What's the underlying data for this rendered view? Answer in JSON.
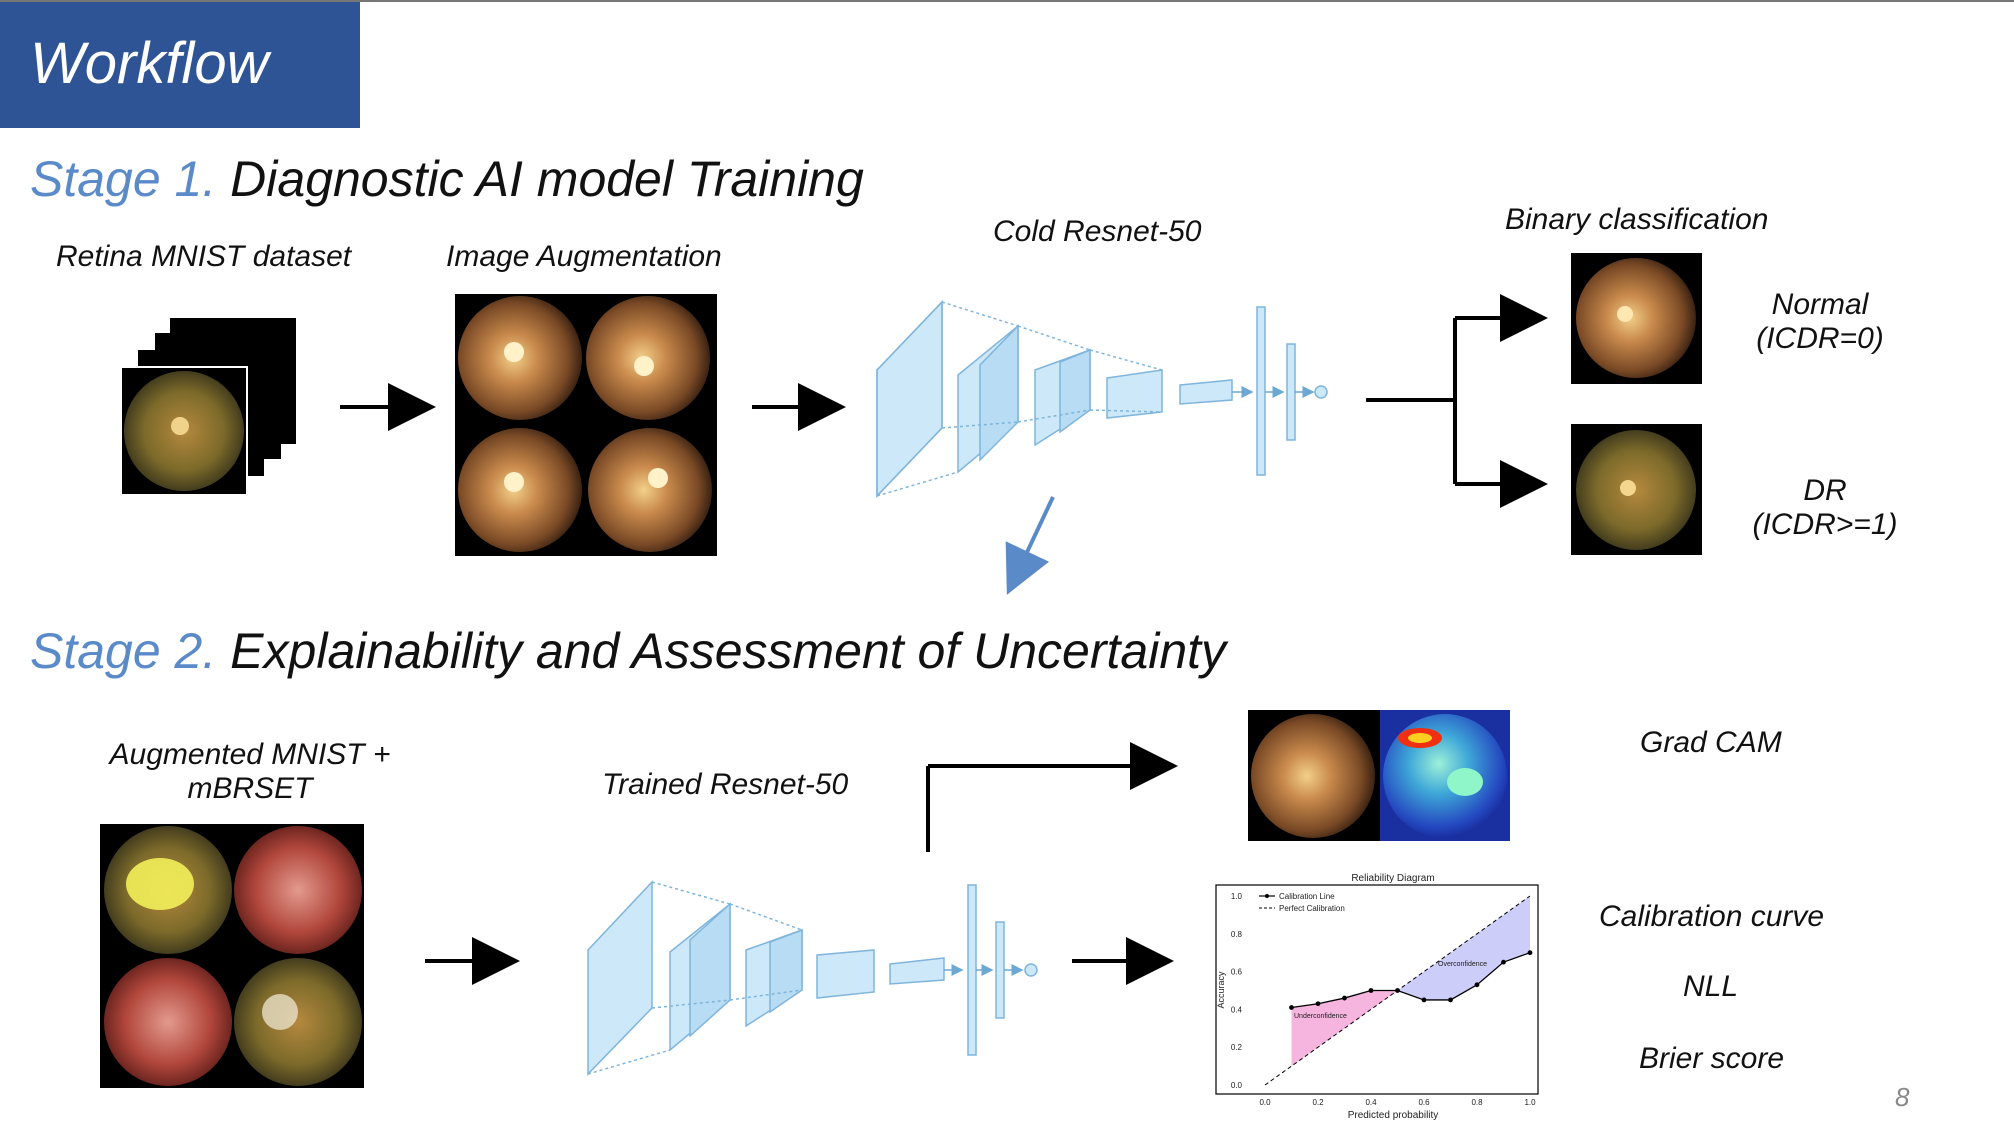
{
  "header": {
    "title": "Workflow"
  },
  "stage1": {
    "prefix": "Stage 1.",
    "title": "Diagnostic AI model Training",
    "dataset_label": "Retina MNIST dataset",
    "augmentation_label": "Image Augmentation",
    "model_label": "Cold Resnet-50",
    "classification_label": "Binary classification",
    "normal_label_line1": "Normal",
    "normal_label_line2": "(ICDR=0)",
    "dr_label_line1": "DR",
    "dr_label_line2": "(ICDR>=1)"
  },
  "stage2": {
    "prefix": "Stage 2.",
    "title": "Explainability and Assessment of Uncertainty",
    "dataset_label_line1": "Augmented MNIST +",
    "dataset_label_line2": "mBRSET",
    "model_label": "Trained Resnet-50",
    "gradcam_label": "Grad CAM",
    "calibration_label": "Calibration curve",
    "nll_label": "NLL",
    "brier_label": "Brier score"
  },
  "reliability": {
    "title": "Reliability Diagram",
    "legend_calibration": "Calibration Line",
    "legend_perfect": "Perfect Calibration",
    "underconfidence": "Underconfidence",
    "overconfidence": "Overconfidence",
    "xlabel": "Predicted probability",
    "ylabel": "Accuracy",
    "x_ticks": [
      "0.0",
      "0.2",
      "0.4",
      "0.6",
      "0.8",
      "1.0"
    ],
    "y_ticks": [
      "0.0",
      "0.2",
      "0.4",
      "0.6",
      "0.8",
      "1.0"
    ]
  },
  "chart_data": {
    "type": "line",
    "title": "Reliability Diagram",
    "xlabel": "Predicted probability",
    "ylabel": "Accuracy",
    "xlim": [
      0,
      1
    ],
    "ylim": [
      0,
      1
    ],
    "series": [
      {
        "name": "Calibration Line",
        "x": [
          0.1,
          0.2,
          0.3,
          0.4,
          0.5,
          0.6,
          0.7,
          0.8,
          0.9,
          1.0
        ],
        "values": [
          0.41,
          0.43,
          0.46,
          0.5,
          0.5,
          0.45,
          0.45,
          0.53,
          0.65,
          0.7
        ]
      },
      {
        "name": "Perfect Calibration",
        "x": [
          0.0,
          1.0
        ],
        "values": [
          0.0,
          1.0
        ]
      }
    ],
    "annotations": [
      "Underconfidence",
      "Overconfidence"
    ],
    "legend": "top-left"
  },
  "page": {
    "number": "8"
  },
  "colors": {
    "header_bg": "#2f5496",
    "stage_accent": "#5b8ac9",
    "network": "#cde8f8",
    "network_edge": "#8cc0e0"
  }
}
